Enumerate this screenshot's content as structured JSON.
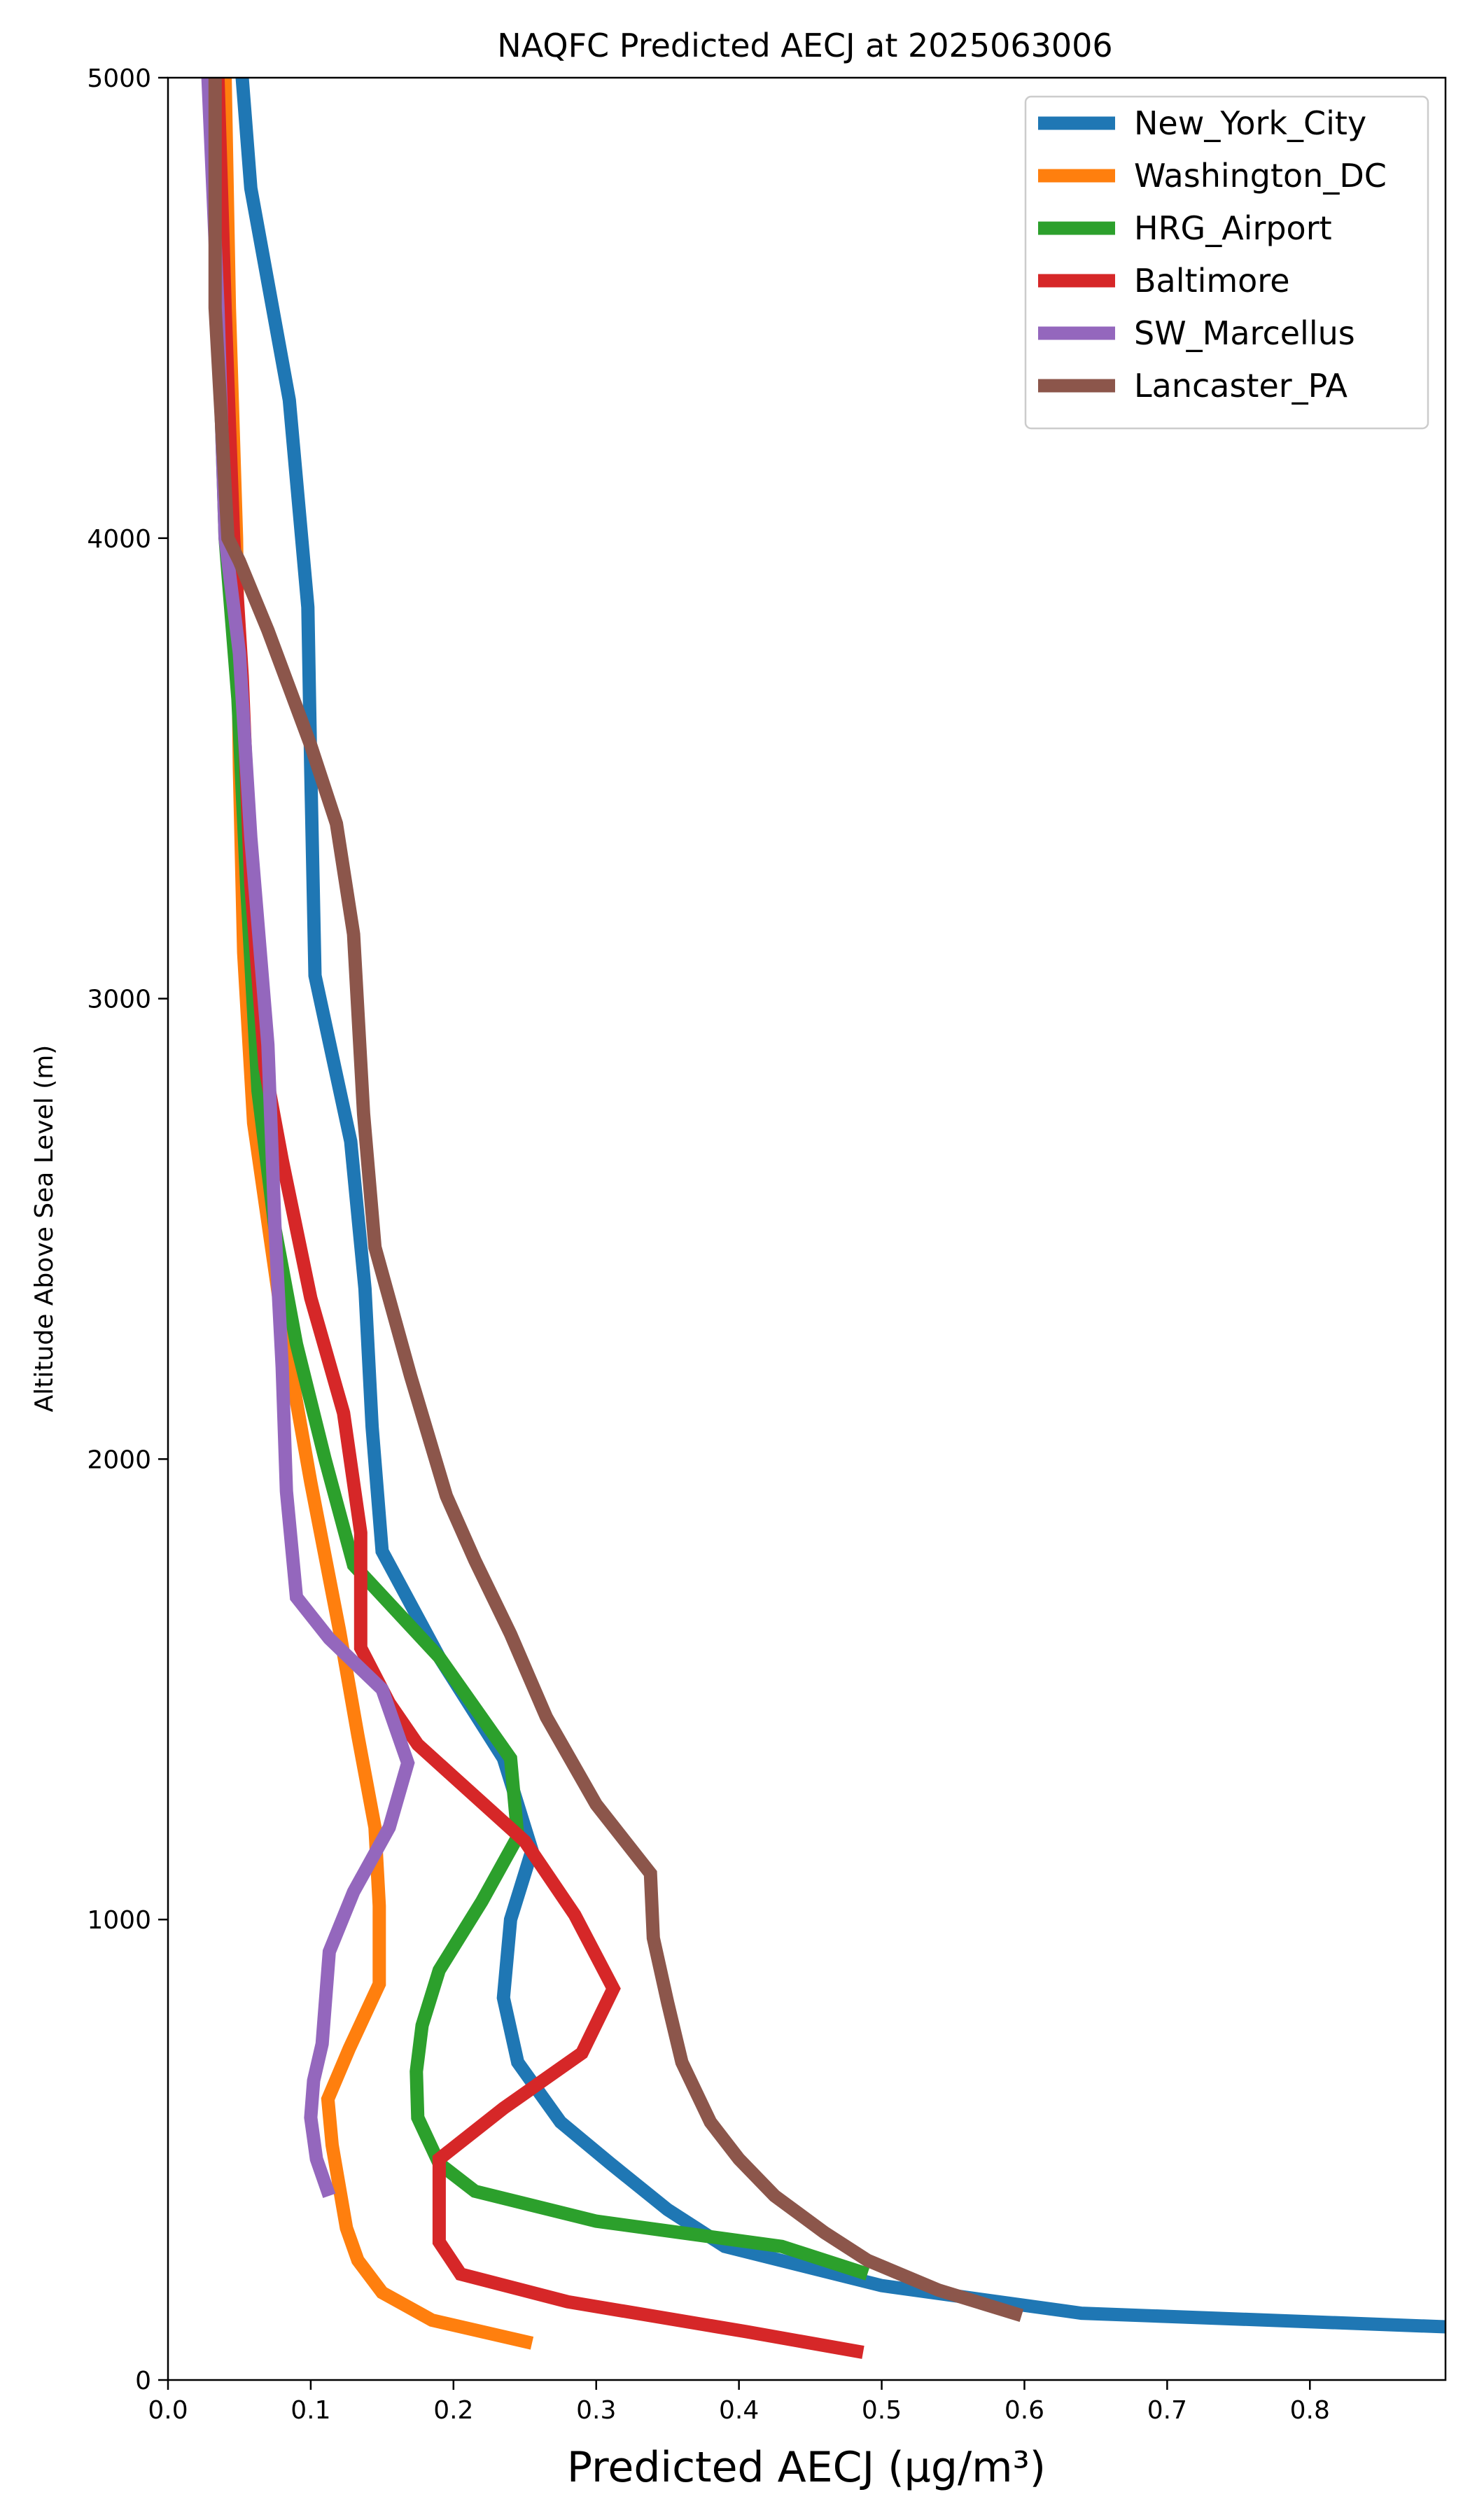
{
  "chart_data": {
    "type": "line",
    "title": "NAQFC Predicted AECJ at 2025063006",
    "xlabel": "Predicted AECJ (μg/m³)",
    "ylabel": "Altitude Above Sea Level (m)",
    "xlim": [
      0.0,
      0.895
    ],
    "ylim": [
      0,
      5000
    ],
    "xticks": [
      0.0,
      0.1,
      0.2,
      0.3,
      0.4,
      0.5,
      0.6,
      0.7,
      0.8
    ],
    "xtick_labels": [
      "0.0",
      "0.1",
      "0.2",
      "0.3",
      "0.4",
      "0.5",
      "0.6",
      "0.7",
      "0.8"
    ],
    "yticks": [
      0,
      1000,
      2000,
      3000,
      4000,
      5000
    ],
    "ytick_labels": [
      "0",
      "1000",
      "2000",
      "3000",
      "4000",
      "5000"
    ],
    "grid": false,
    "legend_position": "top-right",
    "series": [
      {
        "name": "New_York_City",
        "color": "#1f77b4",
        "points": [
          [
            0.9,
            115
          ],
          [
            0.64,
            145
          ],
          [
            0.5,
            205
          ],
          [
            0.39,
            290
          ],
          [
            0.35,
            370
          ],
          [
            0.31,
            470
          ],
          [
            0.275,
            560
          ],
          [
            0.245,
            690
          ],
          [
            0.235,
            830
          ],
          [
            0.24,
            1000
          ],
          [
            0.255,
            1150
          ],
          [
            0.235,
            1350
          ],
          [
            0.19,
            1570
          ],
          [
            0.15,
            1800
          ],
          [
            0.143,
            2070
          ],
          [
            0.138,
            2370
          ],
          [
            0.128,
            2690
          ],
          [
            0.103,
            3050
          ],
          [
            0.1,
            3500
          ],
          [
            0.098,
            3850
          ],
          [
            0.085,
            4300
          ],
          [
            0.058,
            4760
          ],
          [
            0.052,
            5000
          ]
        ]
      },
      {
        "name": "Washington_DC",
        "color": "#ff7f0e",
        "points": [
          [
            0.255,
            80
          ],
          [
            0.185,
            130
          ],
          [
            0.15,
            190
          ],
          [
            0.133,
            260
          ],
          [
            0.125,
            330
          ],
          [
            0.12,
            420
          ],
          [
            0.115,
            510
          ],
          [
            0.112,
            610
          ],
          [
            0.127,
            720
          ],
          [
            0.148,
            860
          ],
          [
            0.148,
            1030
          ],
          [
            0.145,
            1200
          ],
          [
            0.133,
            1400
          ],
          [
            0.12,
            1630
          ],
          [
            0.1,
            1950
          ],
          [
            0.08,
            2300
          ],
          [
            0.06,
            2730
          ],
          [
            0.053,
            3100
          ],
          [
            0.05,
            3500
          ],
          [
            0.048,
            4000
          ],
          [
            0.043,
            4500
          ],
          [
            0.04,
            5000
          ]
        ]
      },
      {
        "name": "HRG_Airport",
        "color": "#2ca02c",
        "points": [
          [
            0.49,
            230
          ],
          [
            0.43,
            290
          ],
          [
            0.3,
            345
          ],
          [
            0.215,
            410
          ],
          [
            0.19,
            470
          ],
          [
            0.175,
            570
          ],
          [
            0.174,
            670
          ],
          [
            0.178,
            770
          ],
          [
            0.19,
            890
          ],
          [
            0.22,
            1040
          ],
          [
            0.245,
            1180
          ],
          [
            0.24,
            1350
          ],
          [
            0.19,
            1570
          ],
          [
            0.13,
            1770
          ],
          [
            0.11,
            2000
          ],
          [
            0.09,
            2250
          ],
          [
            0.075,
            2500
          ],
          [
            0.063,
            2800
          ],
          [
            0.055,
            3250
          ],
          [
            0.049,
            3650
          ],
          [
            0.04,
            4000
          ],
          [
            0.035,
            4500
          ],
          [
            0.03,
            5000
          ]
        ]
      },
      {
        "name": "Baltimore",
        "color": "#d62728",
        "points": [
          [
            0.487,
            60
          ],
          [
            0.405,
            105
          ],
          [
            0.28,
            170
          ],
          [
            0.205,
            230
          ],
          [
            0.19,
            300
          ],
          [
            0.19,
            390
          ],
          [
            0.19,
            480
          ],
          [
            0.235,
            590
          ],
          [
            0.29,
            710
          ],
          [
            0.312,
            850
          ],
          [
            0.285,
            1010
          ],
          [
            0.25,
            1170
          ],
          [
            0.2,
            1310
          ],
          [
            0.175,
            1380
          ],
          [
            0.155,
            1470
          ],
          [
            0.135,
            1590
          ],
          [
            0.135,
            1840
          ],
          [
            0.123,
            2100
          ],
          [
            0.1,
            2350
          ],
          [
            0.08,
            2650
          ],
          [
            0.068,
            2850
          ],
          [
            0.058,
            3250
          ],
          [
            0.052,
            3700
          ],
          [
            0.046,
            4000
          ],
          [
            0.04,
            4500
          ],
          [
            0.035,
            5000
          ]
        ]
      },
      {
        "name": "SW_Marcellus",
        "color": "#9467bd",
        "points": [
          [
            0.113,
            400
          ],
          [
            0.104,
            480
          ],
          [
            0.1,
            570
          ],
          [
            0.102,
            650
          ],
          [
            0.108,
            730
          ],
          [
            0.113,
            930
          ],
          [
            0.13,
            1060
          ],
          [
            0.155,
            1200
          ],
          [
            0.168,
            1340
          ],
          [
            0.15,
            1500
          ],
          [
            0.113,
            1610
          ],
          [
            0.09,
            1700
          ],
          [
            0.083,
            1930
          ],
          [
            0.08,
            2200
          ],
          [
            0.075,
            2500
          ],
          [
            0.07,
            2900
          ],
          [
            0.058,
            3350
          ],
          [
            0.05,
            3750
          ],
          [
            0.04,
            4000
          ],
          [
            0.035,
            4500
          ],
          [
            0.028,
            5000
          ]
        ]
      },
      {
        "name": "Lancaster_PA",
        "color": "#8c564b",
        "points": [
          [
            0.598,
            140
          ],
          [
            0.54,
            195
          ],
          [
            0.49,
            260
          ],
          [
            0.46,
            320
          ],
          [
            0.425,
            400
          ],
          [
            0.4,
            480
          ],
          [
            0.38,
            560
          ],
          [
            0.36,
            690
          ],
          [
            0.35,
            820
          ],
          [
            0.34,
            960
          ],
          [
            0.338,
            1100
          ],
          [
            0.3,
            1250
          ],
          [
            0.265,
            1440
          ],
          [
            0.24,
            1620
          ],
          [
            0.215,
            1780
          ],
          [
            0.195,
            1920
          ],
          [
            0.17,
            2180
          ],
          [
            0.145,
            2460
          ],
          [
            0.137,
            2750
          ],
          [
            0.13,
            3140
          ],
          [
            0.118,
            3380
          ],
          [
            0.1,
            3550
          ],
          [
            0.07,
            3800
          ],
          [
            0.05,
            3950
          ],
          [
            0.042,
            4000
          ],
          [
            0.033,
            4500
          ],
          [
            0.033,
            5000
          ]
        ]
      }
    ]
  }
}
